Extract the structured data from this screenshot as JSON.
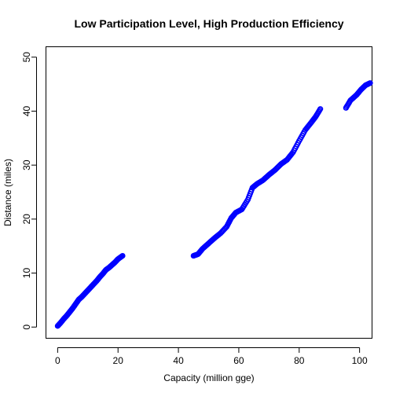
{
  "chart_data": {
    "type": "scatter",
    "title": "Low Participation Level, High Production Efficiency",
    "xlabel": "Capacity (million gge)",
    "ylabel": "Distance (miles)",
    "xlim": [
      -4,
      104
    ],
    "ylim": [
      -2,
      52
    ],
    "xticks": [
      0,
      20,
      40,
      60,
      80,
      100
    ],
    "yticks": [
      0,
      10,
      20,
      30,
      40,
      50
    ],
    "grid": false,
    "marker": "open-circle",
    "point_color": "#0000FF",
    "segments": [
      {
        "points": [
          [
            0.0,
            0.2
          ],
          [
            1.0,
            0.8
          ],
          [
            2.0,
            1.5
          ],
          [
            3.0,
            2.1
          ],
          [
            4.0,
            2.8
          ],
          [
            5.0,
            3.5
          ],
          [
            6.0,
            4.3
          ],
          [
            7.0,
            5.1
          ],
          [
            8.0,
            5.6
          ],
          [
            9.0,
            6.2
          ],
          [
            10.0,
            6.8
          ],
          [
            11.0,
            7.4
          ],
          [
            12.0,
            8.0
          ],
          [
            13.0,
            8.6
          ],
          [
            14.0,
            9.3
          ],
          [
            15.0,
            9.9
          ],
          [
            16.0,
            10.6
          ],
          [
            17.0,
            11.0
          ],
          [
            18.0,
            11.5
          ],
          [
            19.0,
            12.0
          ],
          [
            20.0,
            12.6
          ],
          [
            21.5,
            13.2
          ]
        ]
      },
      {
        "points": [
          [
            45.0,
            13.2
          ],
          [
            46.5,
            13.5
          ],
          [
            48.0,
            14.5
          ],
          [
            50.0,
            15.5
          ],
          [
            52.0,
            16.5
          ],
          [
            54.0,
            17.4
          ],
          [
            56.0,
            18.6
          ],
          [
            57.5,
            20.2
          ],
          [
            59.0,
            21.2
          ],
          [
            61.0,
            21.8
          ],
          [
            63.0,
            23.6
          ],
          [
            64.5,
            25.8
          ],
          [
            66.0,
            26.5
          ],
          [
            68.0,
            27.2
          ],
          [
            70.0,
            28.2
          ],
          [
            72.0,
            29.1
          ],
          [
            74.0,
            30.2
          ],
          [
            76.0,
            31.0
          ],
          [
            78.0,
            32.4
          ],
          [
            80.0,
            34.5
          ],
          [
            82.0,
            36.5
          ],
          [
            84.0,
            37.9
          ],
          [
            85.5,
            39.0
          ],
          [
            87.0,
            40.4
          ]
        ]
      },
      {
        "points": [
          [
            95.5,
            40.6
          ],
          [
            97.0,
            42.0
          ],
          [
            99.0,
            43.0
          ],
          [
            100.5,
            44.0
          ],
          [
            102.0,
            44.8
          ],
          [
            103.5,
            45.2
          ]
        ]
      }
    ]
  }
}
